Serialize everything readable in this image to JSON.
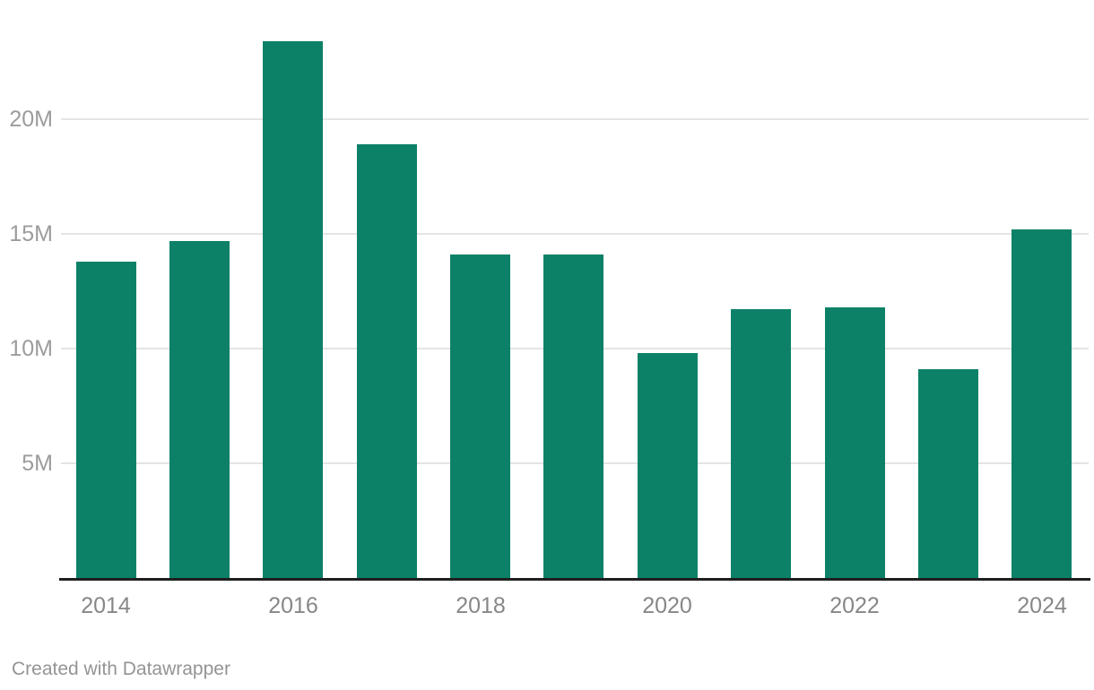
{
  "chart_data": {
    "type": "bar",
    "categories": [
      "2014",
      "2015",
      "2016",
      "2017",
      "2018",
      "2019",
      "2020",
      "2021",
      "2022",
      "2023",
      "2024"
    ],
    "values_millions": [
      13.8,
      14.7,
      23.4,
      18.9,
      14.1,
      14.1,
      9.8,
      11.7,
      11.8,
      9.1,
      15.2
    ],
    "series": [
      {
        "name": "value",
        "values": [
          13.8,
          14.7,
          23.4,
          18.9,
          14.1,
          14.1,
          9.8,
          11.7,
          11.8,
          9.1,
          15.2
        ]
      }
    ],
    "title": "",
    "xlabel": "",
    "ylabel": "",
    "ylim": [
      0,
      23.4
    ],
    "yticks": [
      5,
      10,
      15,
      20
    ],
    "ytick_labels": [
      "5M",
      "10M",
      "15M",
      "20M"
    ],
    "xtick_labels": [
      "2014",
      "2016",
      "2018",
      "2020",
      "2022",
      "2024"
    ],
    "xtick_indices": [
      0,
      2,
      4,
      6,
      8,
      10
    ],
    "grid": "horizontal",
    "legend": "none",
    "bar_color": "#0d8168"
  },
  "colors": {
    "background": "#ffffff",
    "bar": "#0d8168",
    "gridline": "#e4e4e4",
    "axis_line": "#1f1f1f",
    "y_tick_text": "#9c9c9c",
    "x_tick_text": "#878787",
    "credit_text": "#949494"
  },
  "footer": {
    "credit": "Created with Datawrapper"
  }
}
